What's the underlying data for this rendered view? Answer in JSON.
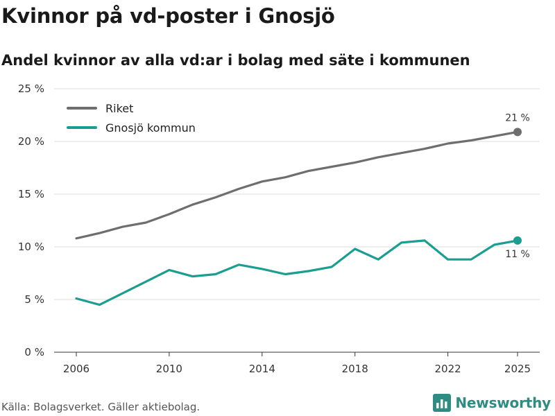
{
  "title": "Kvinnor på vd-poster i Gnosjö",
  "subtitle": "Andel kvinnor av alla vd:ar i bolag med säte i kommunen",
  "source": "Källa: Bolagsverket. Gäller aktiebolag.",
  "brand": {
    "name": "Newsworthy",
    "color": "#2e8c82"
  },
  "chart_data": {
    "type": "line",
    "title": "Kvinnor på vd-poster i Gnosjö",
    "xlabel": "",
    "ylabel": "",
    "x": [
      2006,
      2007,
      2008,
      2009,
      2010,
      2011,
      2012,
      2013,
      2014,
      2015,
      2016,
      2017,
      2018,
      2019,
      2020,
      2021,
      2022,
      2023,
      2024,
      2025
    ],
    "x_ticks": [
      2006,
      2010,
      2014,
      2018,
      2022,
      2025
    ],
    "y_ticks": [
      {
        "value": 0,
        "label": "0 %"
      },
      {
        "value": 5,
        "label": "5 %"
      },
      {
        "value": 10,
        "label": "10 %"
      },
      {
        "value": 15,
        "label": "15 %"
      },
      {
        "value": 20,
        "label": "20 %"
      },
      {
        "value": 25,
        "label": "25 %"
      }
    ],
    "ylim": [
      0,
      25
    ],
    "xlim": [
      2006,
      2025
    ],
    "grid": true,
    "legend_position": "top-left",
    "series": [
      {
        "name": "Riket",
        "color": "#6e6e6e",
        "values": [
          10.8,
          11.3,
          11.9,
          12.3,
          13.1,
          14.0,
          14.7,
          15.5,
          16.2,
          16.6,
          17.2,
          17.6,
          18.0,
          18.5,
          18.9,
          19.3,
          19.8,
          20.1,
          20.5,
          20.9
        ],
        "end_label": "21 %",
        "end_label_position": "above"
      },
      {
        "name": "Gnosjö kommun",
        "color": "#1a9e92",
        "values": [
          5.1,
          4.5,
          5.6,
          6.7,
          7.8,
          7.2,
          7.4,
          8.3,
          7.9,
          7.4,
          7.7,
          8.1,
          9.8,
          8.8,
          10.4,
          10.6,
          8.8,
          8.8,
          10.2,
          10.6
        ],
        "end_label": "11 %",
        "end_label_position": "below"
      }
    ]
  }
}
